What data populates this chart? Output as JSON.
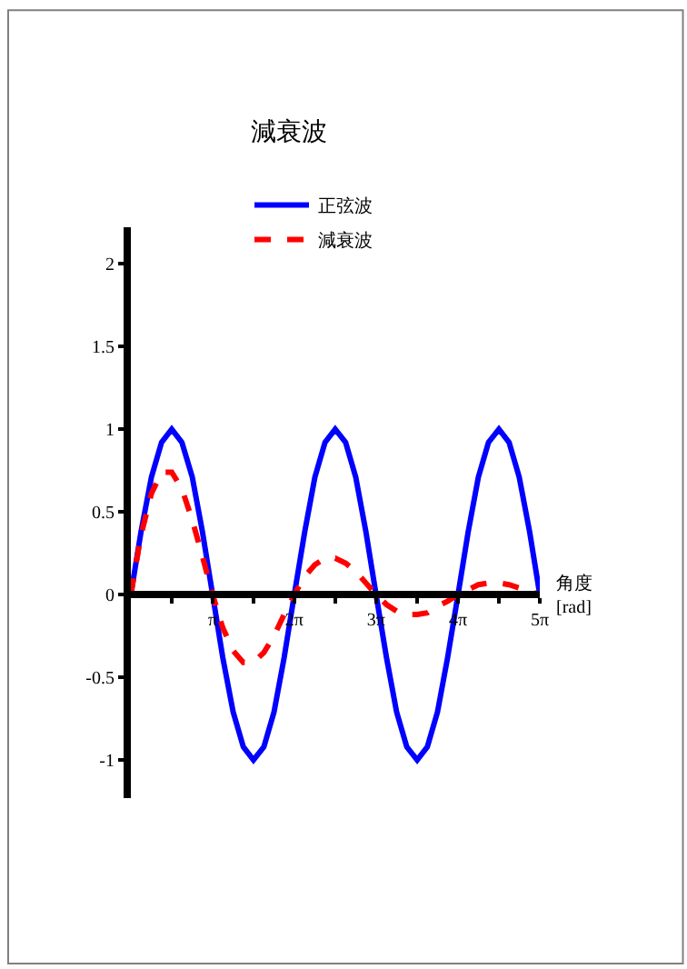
{
  "chart_data": {
    "type": "line",
    "title": "減衰波",
    "xlabel": "角度\n[rad]",
    "x": [
      0,
      0.39,
      0.79,
      1.18,
      1.57,
      1.96,
      2.36,
      2.75,
      3.14,
      3.53,
      3.93,
      4.32,
      4.71,
      5.11,
      5.5,
      5.89,
      6.28,
      6.68,
      7.07,
      7.46,
      7.85,
      8.25,
      8.64,
      9.03,
      9.42,
      9.82,
      10.21,
      10.6,
      11.0,
      11.39,
      11.78,
      12.17,
      12.57,
      12.96,
      13.35,
      13.74,
      14.14,
      14.53,
      14.92,
      15.32,
      15.71
    ],
    "series": [
      {
        "name": "正弦波",
        "color": "#0000ff",
        "line_style": "solid",
        "values": [
          0,
          0.38,
          0.71,
          0.92,
          1,
          0.92,
          0.71,
          0.38,
          0,
          -0.38,
          -0.71,
          -0.92,
          -1,
          -0.92,
          -0.71,
          -0.38,
          0,
          0.38,
          0.71,
          0.92,
          1,
          0.92,
          0.71,
          0.38,
          0,
          -0.38,
          -0.71,
          -0.92,
          -1,
          -0.92,
          -0.71,
          -0.38,
          0,
          0.38,
          0.71,
          0.92,
          1,
          0.92,
          0.71,
          0.38,
          0
        ]
      },
      {
        "name": "減衰波",
        "color": "#ff0000",
        "line_style": "dashed",
        "values": [
          0,
          0.36,
          0.61,
          0.74,
          0.74,
          0.64,
          0.45,
          0.23,
          0,
          -0.2,
          -0.34,
          -0.41,
          -0.41,
          -0.35,
          -0.25,
          -0.12,
          0,
          0.11,
          0.18,
          0.22,
          0.22,
          0.19,
          0.14,
          0.07,
          0,
          -0.06,
          -0.1,
          -0.12,
          -0.12,
          -0.11,
          -0.07,
          -0.04,
          0,
          0.03,
          0.06,
          0.07,
          0.07,
          0.06,
          0.04,
          0.02,
          0
        ]
      }
    ],
    "xlim": [
      0,
      15.71
    ],
    "xticks": [
      {
        "value": 1.57,
        "label": null
      },
      {
        "value": 3.14,
        "label": "π"
      },
      {
        "value": 4.71,
        "label": null
      },
      {
        "value": 6.28,
        "label": "2π"
      },
      {
        "value": 7.85,
        "label": null
      },
      {
        "value": 9.42,
        "label": "3π"
      },
      {
        "value": 11.0,
        "label": null
      },
      {
        "value": 12.57,
        "label": "4π"
      },
      {
        "value": 14.14,
        "label": null
      },
      {
        "value": 15.71,
        "label": "5π"
      }
    ],
    "ylim": [
      -1.23,
      2.22
    ],
    "yticks": [
      -1,
      -0.5,
      0,
      0.5,
      1,
      1.5,
      2
    ],
    "legend": "top",
    "marker": "none"
  }
}
